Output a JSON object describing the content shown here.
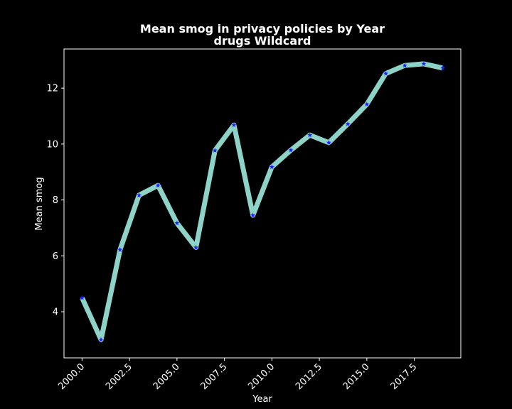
{
  "chart_data": {
    "type": "line",
    "title": "Mean smog in privacy policies by Year",
    "subtitle": "drugs Wildcard",
    "xlabel": "Year",
    "ylabel": "Mean smog",
    "xlim": [
      1999.05,
      2019.95
    ],
    "ylim": [
      2.35,
      13.4
    ],
    "xticks": [
      2000.0,
      2002.5,
      2005.0,
      2007.5,
      2010.0,
      2012.5,
      2015.0,
      2017.5
    ],
    "xtick_labels": [
      "2000.0",
      "2002.5",
      "2005.0",
      "2007.5",
      "2010.0",
      "2012.5",
      "2015.0",
      "2017.5"
    ],
    "yticks": [
      4,
      6,
      8,
      10,
      12
    ],
    "ytick_labels": [
      "4",
      "6",
      "8",
      "10",
      "12"
    ],
    "grid": false,
    "line_color": "#8dd3c7",
    "marker_color": "#1f1fff",
    "background": "#000000",
    "x": [
      2000,
      2001,
      2002,
      2003,
      2004,
      2005,
      2006,
      2007,
      2008,
      2009,
      2010,
      2011,
      2012,
      2013,
      2014,
      2015,
      2016,
      2017,
      2018,
      2019
    ],
    "values": [
      4.5,
      3.0,
      6.22,
      8.17,
      8.52,
      7.17,
      6.3,
      9.77,
      10.68,
      7.45,
      9.18,
      9.78,
      10.32,
      10.05,
      10.72,
      11.42,
      12.52,
      12.81,
      12.87,
      12.72
    ]
  }
}
